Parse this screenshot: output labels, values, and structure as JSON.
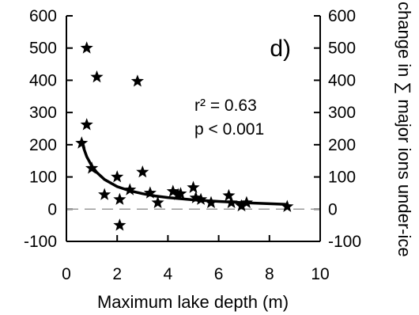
{
  "chart_data": {
    "type": "scatter",
    "xlabel": "Maximum lake depth (m)",
    "ylabel_right": "change in ∑ major ions under-ice",
    "xlim": [
      0,
      10
    ],
    "ylim": [
      -100,
      600
    ],
    "x_ticks": [
      0,
      2,
      4,
      6,
      8,
      10
    ],
    "y_ticks": [
      -100,
      0,
      100,
      200,
      300,
      400,
      500,
      600
    ],
    "grid": false,
    "panel_label": "d)",
    "stats": {
      "r2": "r² = 0.63",
      "p": "p < 0.001"
    },
    "reference_line_y": 0,
    "series": [
      {
        "marker": "star",
        "x": [
          0.6,
          0.8,
          0.8,
          1.0,
          1.2,
          1.5,
          2.0,
          2.1,
          2.1,
          2.5,
          2.8,
          3.0,
          3.3,
          3.6,
          4.2,
          4.4,
          4.5,
          5.0,
          5.1,
          5.3,
          5.7,
          6.4,
          6.5,
          6.9,
          7.1,
          8.7
        ],
        "y": [
          205,
          500,
          262,
          127,
          410,
          45,
          100,
          30,
          -50,
          60,
          397,
          115,
          50,
          20,
          55,
          45,
          48,
          67,
          35,
          30,
          20,
          42,
          20,
          10,
          20,
          8
        ]
      }
    ],
    "fit_curve": {
      "x": [
        0.6,
        0.7,
        0.8,
        1.0,
        1.2,
        1.5,
        2.0,
        2.5,
        3.0,
        3.5,
        4.0,
        5.0,
        6.0,
        7.0,
        8.0,
        8.7
      ],
      "y": [
        212,
        185,
        163,
        134,
        114,
        92,
        70,
        57,
        48,
        41,
        36,
        29,
        24,
        20,
        17,
        15
      ]
    },
    "colors": {
      "markers": "#000000",
      "fit_line": "#000000",
      "reference_line": "#999999"
    }
  }
}
